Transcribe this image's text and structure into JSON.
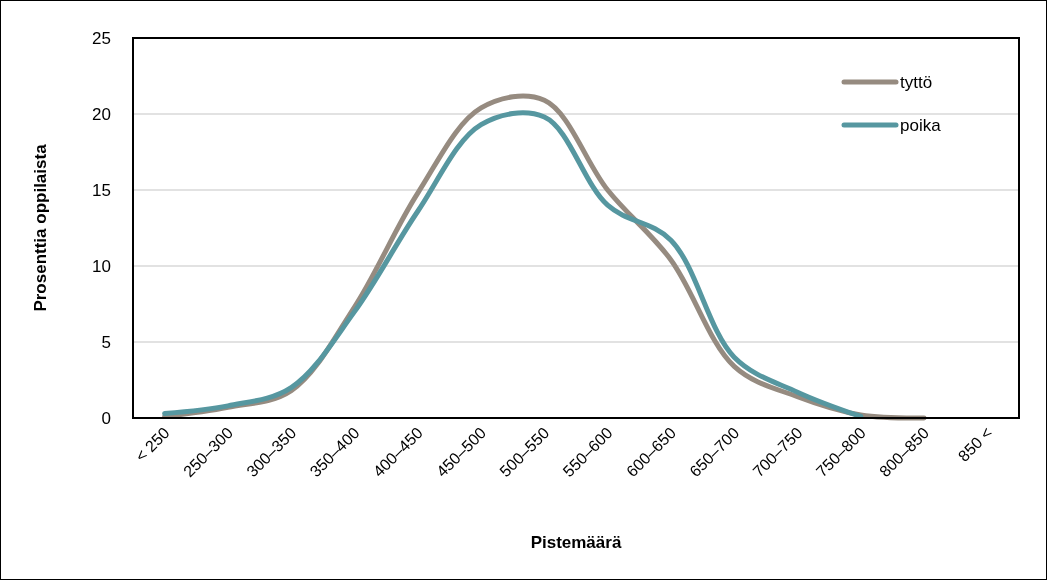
{
  "chart_data": {
    "type": "line",
    "xlabel": "Pistemäärä",
    "ylabel": "Prosenttia oppilaista",
    "categories": [
      "< 250",
      "250–300",
      "300–350",
      "350–400",
      "400–450",
      "450–500",
      "500–550",
      "550–600",
      "600–650",
      "650–700",
      "700–750",
      "750–800",
      "800–850",
      "850 <"
    ],
    "series": [
      {
        "name": "tyttö",
        "color": "#968b80",
        "values": [
          0.1,
          0.7,
          1.8,
          7.3,
          14.8,
          20.4,
          20.9,
          15.0,
          10.4,
          3.4,
          1.4,
          0.2,
          0.0,
          null
        ]
      },
      {
        "name": "poika",
        "color": "#5697a0",
        "values": [
          0.3,
          0.8,
          2.0,
          7.0,
          13.6,
          19.3,
          19.8,
          14.0,
          11.7,
          4.0,
          1.7,
          0.1,
          null,
          null
        ]
      }
    ],
    "ylim": [
      0,
      25
    ],
    "yticks": [
      0,
      5,
      10,
      15,
      20,
      25
    ],
    "grid": "y",
    "legend": "top right",
    "marker": "none",
    "line_style": "solid"
  }
}
